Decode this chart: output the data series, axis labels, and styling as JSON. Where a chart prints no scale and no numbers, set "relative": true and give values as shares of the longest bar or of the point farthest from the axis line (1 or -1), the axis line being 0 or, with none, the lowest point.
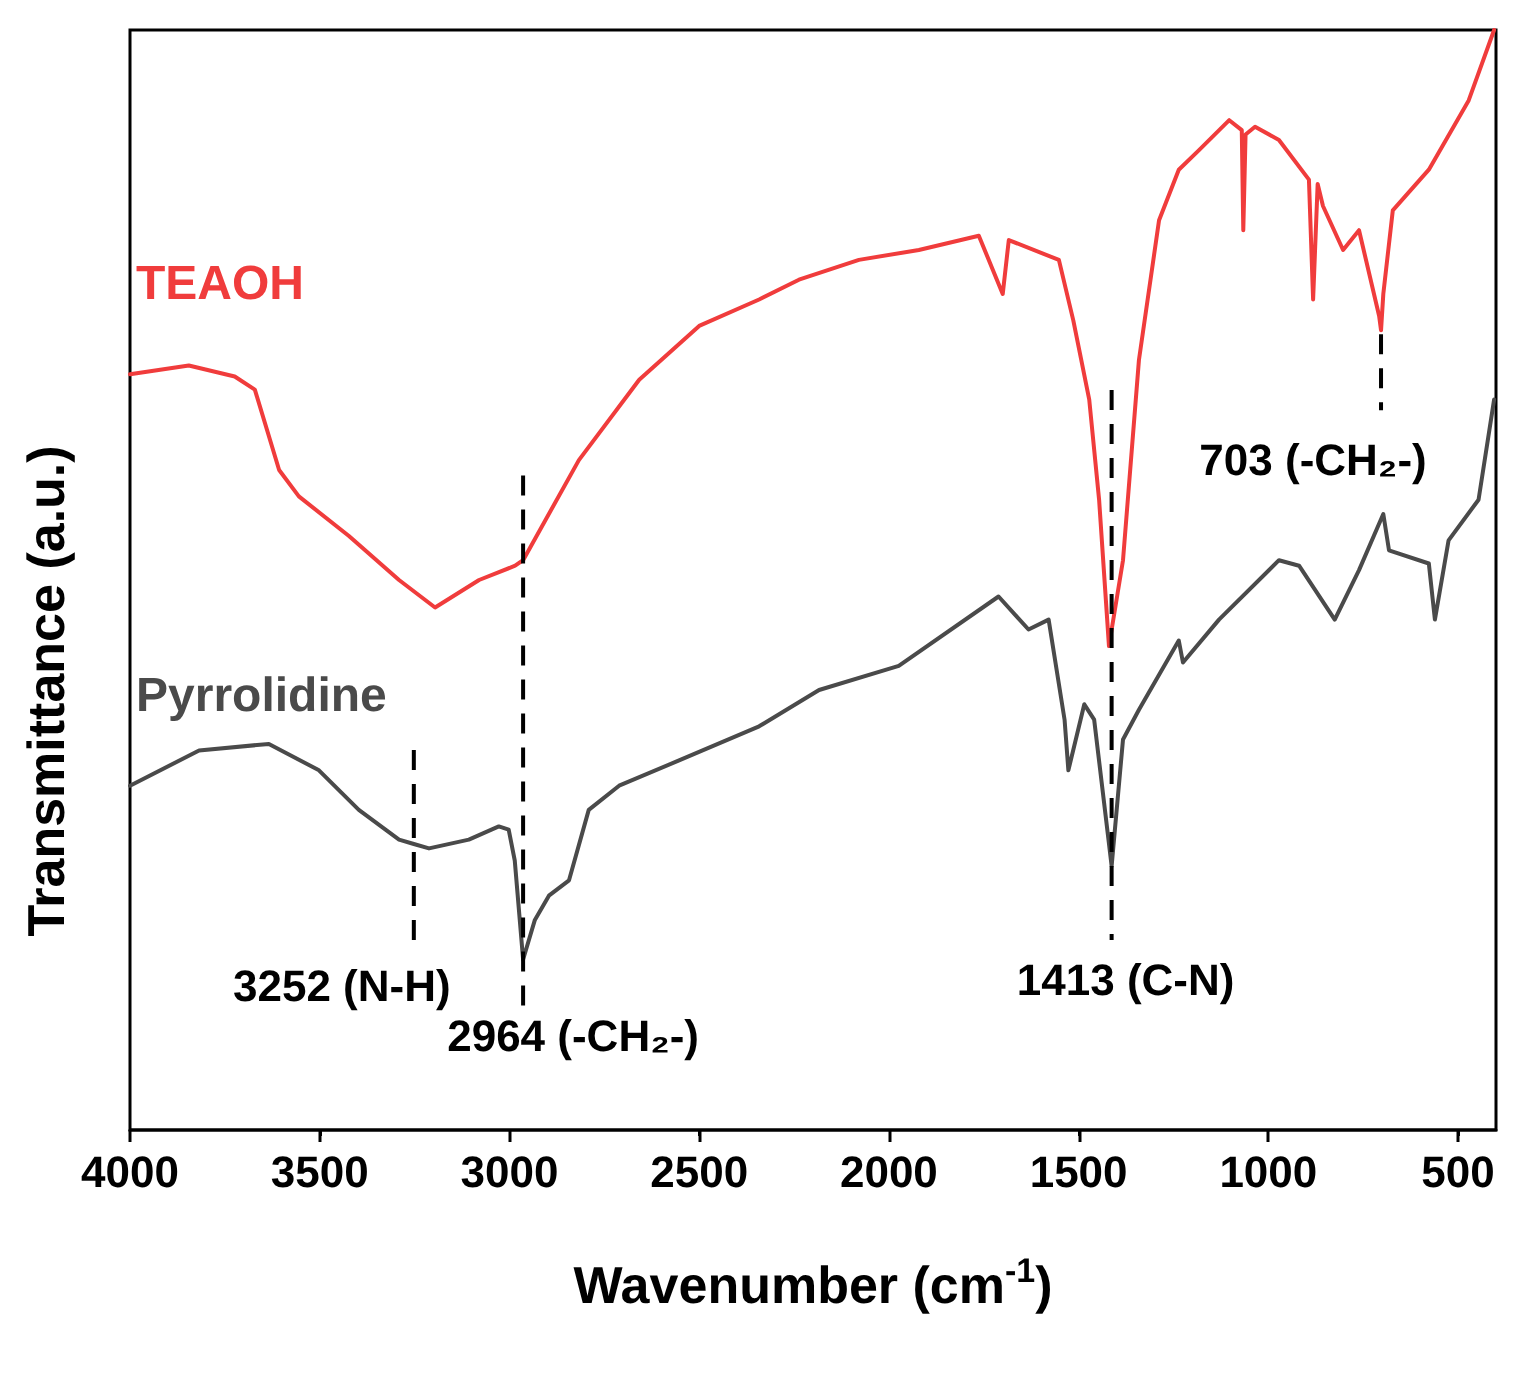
{
  "chart_data": {
    "type": "line",
    "xlabel": "Wavenumber (cm$^{-1}$)",
    "ylabel": "Transmittance (a.u.)",
    "relative": true,
    "xlim": [
      4000,
      400
    ],
    "xticks": [
      4000,
      3500,
      3000,
      2500,
      2000,
      1500,
      1000,
      500
    ],
    "marker": "none",
    "line_style": "solid",
    "series": [
      {
        "name": "TEAOH",
        "color": "#f03c3c",
        "x": [
          4000,
          3845,
          3724,
          3671,
          3607,
          3555,
          3423,
          3291,
          3196,
          3080,
          2985,
          2964,
          2817,
          2658,
          2500,
          2342,
          2237,
          2079,
          1921,
          1763,
          1700,
          1684,
          1552,
          1514,
          1472,
          1446,
          1420,
          1383,
          1341,
          1288,
          1236,
          1182,
          1103,
          1070,
          1066,
          1060,
          1035,
          972,
          893,
          882,
          870,
          856,
          803,
          761,
          708,
          703,
          697,
          672,
          577,
          472,
          405
        ],
        "values": [
          0.687,
          0.695,
          0.685,
          0.673,
          0.6,
          0.576,
          0.54,
          0.5,
          0.475,
          0.5,
          0.513,
          0.518,
          0.609,
          0.682,
          0.731,
          0.755,
          0.773,
          0.791,
          0.8,
          0.813,
          0.76,
          0.809,
          0.791,
          0.736,
          0.664,
          0.573,
          0.44,
          0.518,
          0.7,
          0.827,
          0.873,
          0.891,
          0.918,
          0.909,
          0.818,
          0.905,
          0.912,
          0.9,
          0.864,
          0.755,
          0.86,
          0.84,
          0.8,
          0.818,
          0.74,
          0.727,
          0.76,
          0.836,
          0.873,
          0.936,
          1.0
        ]
      },
      {
        "name": "Pyrrolidine",
        "color": "#4a4a4a",
        "x": [
          4000,
          3818,
          3634,
          3502,
          3397,
          3291,
          3252,
          3212,
          3107,
          3028,
          3002,
          2986,
          2964,
          2933,
          2896,
          2843,
          2791,
          2711,
          2553,
          2342,
          2184,
          1974,
          1711,
          1632,
          1579,
          1537,
          1527,
          1485,
          1459,
          1413,
          1383,
          1341,
          1236,
          1225,
          1130,
          972,
          919,
          825,
          761,
          697,
          682,
          577,
          561,
          525,
          446,
          405
        ],
        "values": [
          0.313,
          0.345,
          0.351,
          0.327,
          0.291,
          0.264,
          0.26,
          0.256,
          0.264,
          0.276,
          0.273,
          0.245,
          0.155,
          0.191,
          0.213,
          0.227,
          0.291,
          0.313,
          0.336,
          0.367,
          0.4,
          0.422,
          0.485,
          0.455,
          0.464,
          0.373,
          0.327,
          0.387,
          0.373,
          0.24,
          0.355,
          0.382,
          0.445,
          0.425,
          0.464,
          0.518,
          0.513,
          0.464,
          0.509,
          0.56,
          0.527,
          0.515,
          0.464,
          0.536,
          0.573,
          0.664
        ]
      }
    ],
    "annotations": [
      {
        "text": "3252 (N-H)",
        "x": 3252,
        "y": 0.26
      },
      {
        "text": "2964 (-CH₂-)",
        "x": 2964,
        "y": 0.155
      },
      {
        "text": "1413 (C-N)",
        "x": 1413,
        "y": 0.24
      },
      {
        "text": "703 (-CH₂-)",
        "x": 703,
        "y": 0.727
      }
    ]
  }
}
